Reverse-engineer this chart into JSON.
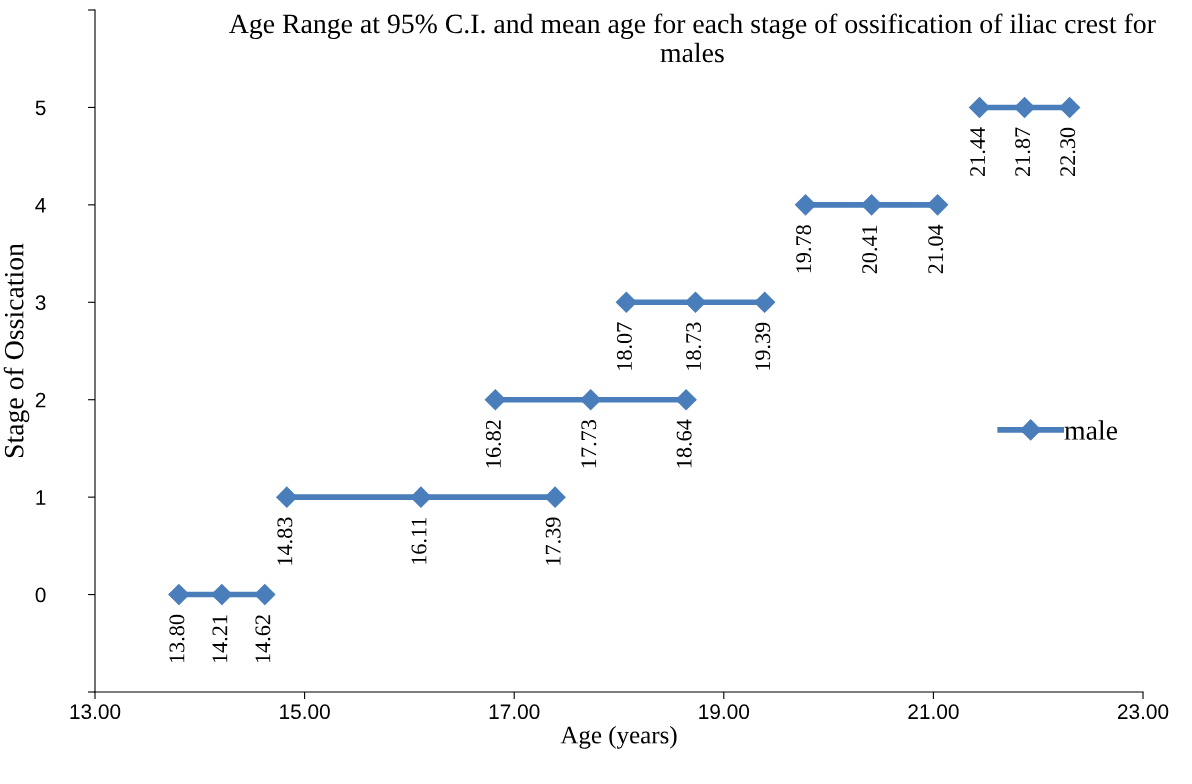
{
  "chart_data": {
    "type": "line",
    "title": "Age Range at 95% C.I. and mean age for each stage of ossification of iliac crest for males",
    "xlabel": "Age (years)",
    "ylabel": "Stage of Ossication",
    "series": [
      {
        "name": "male",
        "color": "#4a7ebb",
        "x": [
          13.8,
          14.21,
          14.62,
          null,
          14.83,
          16.11,
          17.39,
          null,
          16.82,
          17.73,
          18.64,
          null,
          18.07,
          18.73,
          19.39,
          null,
          19.78,
          20.41,
          21.04,
          null,
          21.44,
          21.87,
          22.3
        ],
        "values": [
          0,
          0,
          0,
          null,
          1,
          1,
          1,
          null,
          2,
          2,
          2,
          null,
          3,
          3,
          3,
          null,
          4,
          4,
          4,
          null,
          5,
          5,
          5
        ]
      }
    ],
    "annotations": [
      {
        "text": "13.80",
        "x": 13.8,
        "y": 0
      },
      {
        "text": "14.21",
        "x": 14.21,
        "y": 0
      },
      {
        "text": "14.62",
        "x": 14.62,
        "y": 0
      },
      {
        "text": "14.83",
        "x": 14.83,
        "y": 1
      },
      {
        "text": "16.11",
        "x": 16.11,
        "y": 1
      },
      {
        "text": "17.39",
        "x": 17.39,
        "y": 1
      },
      {
        "text": "16.82",
        "x": 16.82,
        "y": 2
      },
      {
        "text": "17.73",
        "x": 17.73,
        "y": 2
      },
      {
        "text": "18.64",
        "x": 18.64,
        "y": 2
      },
      {
        "text": "18.07",
        "x": 18.07,
        "y": 3
      },
      {
        "text": "18.73",
        "x": 18.73,
        "y": 3
      },
      {
        "text": "19.39",
        "x": 19.39,
        "y": 3
      },
      {
        "text": "19.78",
        "x": 19.78,
        "y": 4
      },
      {
        "text": "20.41",
        "x": 20.41,
        "y": 4
      },
      {
        "text": "21.04",
        "x": 21.04,
        "y": 4
      },
      {
        "text": "21.44",
        "x": 21.44,
        "y": 5
      },
      {
        "text": "21.87",
        "x": 21.87,
        "y": 5
      },
      {
        "text": "22.30",
        "x": 22.3,
        "y": 5
      }
    ],
    "xlim": [
      13,
      23
    ],
    "xticks": [
      {
        "value": 13,
        "label": "13.00"
      },
      {
        "value": 15,
        "label": "15.00"
      },
      {
        "value": 17,
        "label": "17.00"
      },
      {
        "value": 19,
        "label": "19.00"
      },
      {
        "value": 21,
        "label": "21.00"
      },
      {
        "value": 23,
        "label": "23.00"
      }
    ],
    "ylim": [
      -1,
      6
    ],
    "yticks": [
      {
        "value": -1,
        "label": null
      },
      0,
      1,
      2,
      3,
      4,
      5,
      {
        "value": 6,
        "label": null
      }
    ],
    "grid": false,
    "legend": "right",
    "marker": "diamond",
    "line_style": "solid"
  }
}
